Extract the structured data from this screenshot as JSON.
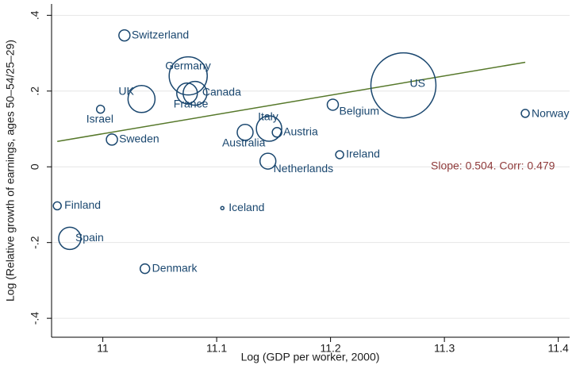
{
  "chart_data": {
    "type": "bubble",
    "x_label": "Log (GDP per worker, 2000)",
    "y_label": "Log (Relative growth of earnings, ages 50–54/25–29)",
    "xlim": [
      10.955,
      11.41
    ],
    "ylim": [
      -0.45,
      0.43
    ],
    "xticks": [
      11,
      11.1,
      11.2,
      11.3,
      11.4
    ],
    "yticks": [
      {
        "value": 0.4,
        "label": ".4"
      },
      {
        "value": 0.2,
        "label": ".2"
      },
      {
        "value": 0,
        "label": "0"
      },
      {
        "value": -0.2,
        "label": "-.2"
      },
      {
        "value": -0.4,
        "label": "-.4"
      }
    ],
    "grid": true,
    "color": "#1a476f",
    "labels": [
      "Switzerland",
      "Germany",
      "Canada",
      "France",
      "UK",
      "Israel",
      "Sweden",
      "Finland",
      "Spain",
      "Denmark",
      "Iceland",
      "Australia",
      "Italy",
      "Austria",
      "Netherlands",
      "Belgium",
      "Ireland",
      "US",
      "Norway"
    ],
    "x": [
      11.019,
      11.075,
      11.081,
      11.074,
      11.034,
      10.998,
      11.008,
      10.96,
      10.971,
      11.037,
      11.105,
      11.125,
      11.146,
      11.153,
      11.145,
      11.202,
      11.208,
      11.264,
      11.371
    ],
    "values": [
      0.347,
      0.24,
      0.194,
      0.194,
      0.179,
      0.152,
      0.072,
      -0.103,
      -0.189,
      -0.269,
      -0.109,
      0.091,
      0.101,
      0.091,
      0.015,
      0.164,
      0.032,
      0.215,
      0.141
    ],
    "sizes": [
      49,
      576,
      225,
      169,
      289,
      25,
      49,
      25,
      196,
      36,
      4,
      100,
      256,
      36,
      100,
      49,
      25,
      1681,
      25
    ],
    "fit_line": {
      "x": [
        10.96,
        11.371
      ],
      "y": [
        0.067,
        0.276
      ],
      "color": "#56782a"
    },
    "annotation": "Slope: 0.504.  Corr: 0.479"
  }
}
